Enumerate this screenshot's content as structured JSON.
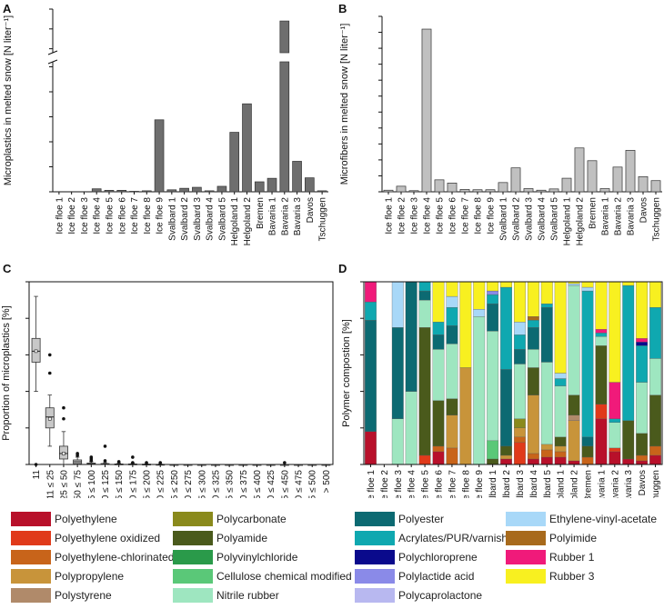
{
  "chart_data": [
    {
      "panel": "A",
      "type": "bar",
      "ylabel": "Microplastics in melted snow [N liter⁻¹]",
      "categories": [
        "Ice floe 1",
        "Ice floe 2",
        "Ice floe 3",
        "Ice floe 4",
        "Ice floe 5",
        "Ice floe 6",
        "Ice floe 7",
        "Ice floe 8",
        "Ice floe 9",
        "Svalbard 1",
        "Svalbard 2",
        "Svalbard 3",
        "Svalbard 4",
        "Svalbard 5",
        "Helgoland 1",
        "Helgoland 2",
        "Bremen",
        "Bavaria 1",
        "Bavaria 2",
        "Bavaria 3",
        "Davos",
        "Tschuggen"
      ],
      "values": [
        0,
        0,
        0,
        600,
        300,
        300,
        100,
        200,
        14400,
        400,
        700,
        900,
        200,
        1100,
        11900,
        17600,
        2000,
        2700,
        154000,
        6100,
        2800,
        200
      ],
      "yticks_lower": [
        "0",
        "5000",
        "10,000",
        "15,000",
        "20,000",
        "25,000"
      ],
      "yticks_upper": [
        "140,000",
        "150,000",
        "160,000"
      ],
      "axis_break": [
        26000,
        138000
      ],
      "bar_color": "#6e6e6e"
    },
    {
      "panel": "B",
      "type": "bar",
      "ylabel": "Microfibers in melted snow [N liter⁻¹]",
      "categories": [
        "Ice floe 1",
        "Ice floe 2",
        "Ice floe 3",
        "Ice floe 4",
        "Ice floe 5",
        "Ice floe 6",
        "Ice floe 7",
        "Ice floe 8",
        "Ice floe 9",
        "Svalbard 1",
        "Svalbard 2",
        "Svalbard 3",
        "Svalbard 4",
        "Svalbard 5",
        "Helgoland 1",
        "Helgoland 2",
        "Bremen",
        "Bavaria 1",
        "Bavaria 2",
        "Bavaria 3",
        "Davos",
        "Tschuggen"
      ],
      "values": [
        100,
        350,
        70,
        10200,
        750,
        550,
        150,
        130,
        130,
        580,
        1500,
        200,
        100,
        180,
        850,
        2750,
        1950,
        200,
        1550,
        2600,
        950,
        700
      ],
      "ylim": [
        0,
        11000
      ],
      "yticks": [
        "0",
        "1000",
        "2000",
        "3000",
        "4000",
        "5000",
        "6000",
        "7000",
        "8000",
        "9000",
        "10,000",
        "11,000"
      ],
      "bar_color": "#c0c0c0"
    },
    {
      "panel": "C",
      "type": "box",
      "ylabel": "Proportion of microplastics [%]",
      "categories": [
        "11",
        "> 11 ≤ 25",
        "> 25 ≤ 50",
        "> 50 ≤ 75",
        "> 75 ≤ 100",
        "> 100 ≤ 125",
        "> 125 ≤ 150",
        "> 150 ≤ 175",
        "> 175 ≤ 200",
        "> 200 ≤ 225",
        "> 225 ≤ 250",
        "> 250 ≤ 275",
        "> 275 ≤ 300",
        "> 300 ≤ 325",
        "> 325 ≤ 350",
        "> 350 ≤ 375",
        "> 375 ≤ 400",
        "> 400 ≤ 425",
        "> 425 ≤ 450",
        "> 450 ≤ 475",
        "> 475 ≤ 500",
        "> 500"
      ],
      "ylim": [
        0,
        100
      ],
      "yticks": [
        "0",
        "20",
        "40",
        "60",
        "80",
        "100"
      ],
      "boxes": [
        {
          "whislo": 40,
          "q1": 56,
          "med": 62,
          "q3": 69,
          "whishi": 92,
          "mean": 62,
          "fliers": [
            0
          ]
        },
        {
          "whislo": 10,
          "q1": 20,
          "med": 26,
          "q3": 31,
          "whishi": 38,
          "mean": 25,
          "fliers": [
            50,
            60
          ]
        },
        {
          "whislo": 0,
          "q1": 3,
          "med": 6,
          "q3": 10,
          "whishi": 18,
          "mean": 6,
          "fliers": [
            25,
            31
          ]
        },
        {
          "whislo": 0,
          "q1": 0.5,
          "med": 1.5,
          "q3": 2.5,
          "whishi": 4,
          "mean": 1.5,
          "fliers": [
            5,
            6
          ]
        },
        {
          "whislo": 0,
          "q1": 0,
          "med": 0.3,
          "q3": 0.8,
          "whishi": 1.5,
          "mean": 0.5,
          "fliers": [
            2,
            3,
            4
          ]
        },
        {
          "whislo": 0,
          "q1": 0,
          "med": 0.2,
          "q3": 0.5,
          "whishi": 1,
          "mean": 0.3,
          "fliers": [
            2,
            10
          ]
        },
        {
          "whislo": 0,
          "q1": 0,
          "med": 0.1,
          "q3": 0.3,
          "whishi": 0.7,
          "mean": 0.2,
          "fliers": [
            1.5
          ]
        },
        {
          "whislo": 0,
          "q1": 0,
          "med": 0.1,
          "q3": 0.3,
          "whishi": 0.6,
          "mean": 0.2,
          "fliers": [
            1,
            4
          ]
        },
        {
          "whislo": 0,
          "q1": 0,
          "med": 0,
          "q3": 0.2,
          "whishi": 0.4,
          "mean": 0.1,
          "fliers": [
            1
          ]
        },
        {
          "whislo": 0,
          "q1": 0,
          "med": 0,
          "q3": 0.1,
          "whishi": 0.3,
          "mean": 0.1,
          "fliers": [
            1
          ]
        },
        {
          "whislo": 0,
          "q1": 0,
          "med": 0,
          "q3": 0,
          "whishi": 0,
          "mean": 0,
          "fliers": []
        },
        {
          "whislo": 0,
          "q1": 0,
          "med": 0,
          "q3": 0,
          "whishi": 0,
          "mean": 0,
          "fliers": []
        },
        {
          "whislo": 0,
          "q1": 0,
          "med": 0,
          "q3": 0,
          "whishi": 0,
          "mean": 0,
          "fliers": []
        },
        {
          "whislo": 0,
          "q1": 0,
          "med": 0,
          "q3": 0,
          "whishi": 0,
          "mean": 0,
          "fliers": []
        },
        {
          "whislo": 0,
          "q1": 0,
          "med": 0,
          "q3": 0,
          "whishi": 0,
          "mean": 0,
          "fliers": []
        },
        {
          "whislo": 0,
          "q1": 0,
          "med": 0,
          "q3": 0,
          "whishi": 0,
          "mean": 0,
          "fliers": []
        },
        {
          "whislo": 0,
          "q1": 0,
          "med": 0,
          "q3": 0,
          "whishi": 0,
          "mean": 0,
          "fliers": []
        },
        {
          "whislo": 0,
          "q1": 0,
          "med": 0,
          "q3": 0,
          "whishi": 0,
          "mean": 0,
          "fliers": []
        },
        {
          "whislo": 0,
          "q1": 0,
          "med": 0,
          "q3": 0,
          "whishi": 0,
          "mean": 0,
          "fliers": [
            1
          ]
        },
        {
          "whislo": 0,
          "q1": 0,
          "med": 0,
          "q3": 0,
          "whishi": 0,
          "mean": 0,
          "fliers": []
        },
        {
          "whislo": 0,
          "q1": 0,
          "med": 0,
          "q3": 0,
          "whishi": 0,
          "mean": 0,
          "fliers": []
        },
        {
          "whislo": 0,
          "q1": 0,
          "med": 0,
          "q3": 0,
          "whishi": 0,
          "mean": 0,
          "fliers": []
        }
      ],
      "box_color": "#c8c8c8"
    },
    {
      "panel": "D",
      "type": "stacked_bar",
      "ylabel": "Polymer compostion [%]",
      "ylim": [
        0,
        100
      ],
      "yticks": [
        "0",
        "20",
        "40",
        "60",
        "80",
        "100"
      ],
      "categories": [
        "Ice floe 1",
        "Ice floe 2",
        "Ice floe 3",
        "Ice floe 4",
        "Ice floe 5",
        "Ice floe 6",
        "Ice floe 7",
        "Ice floe 8",
        "Ice floe 9",
        "Svalbard 1",
        "Svalbard 2",
        "Svalbard 3",
        "Svalbard 4",
        "Svalbard 5",
        "Helgoland 1",
        "Helgoland 2",
        "Bremen",
        "Bavaria 1",
        "Bavaria 2",
        "Bavaria 3",
        "Davos",
        "Tschuggen"
      ],
      "series": [
        {
          "name": "Polyethylene",
          "color": "#b8102a",
          "values": [
            18,
            0,
            0,
            0,
            0,
            7,
            0,
            0,
            0,
            0,
            3,
            0,
            3,
            4,
            4,
            2,
            0,
            25,
            7,
            3,
            2,
            5
          ]
        },
        {
          "name": "Polyethylene oxidized",
          "color": "#e03a1a",
          "values": [
            0,
            0,
            0,
            0,
            5,
            0,
            0,
            0,
            0,
            0,
            0,
            12,
            0,
            0,
            0,
            0,
            0,
            8,
            2,
            0,
            0,
            0
          ]
        },
        {
          "name": "Polyethylene-chlorinated",
          "color": "#c8641a",
          "values": [
            0,
            0,
            0,
            0,
            0,
            3,
            9,
            0,
            0,
            0,
            0,
            3,
            3,
            4,
            3,
            0,
            4,
            0,
            0,
            0,
            3,
            5
          ]
        },
        {
          "name": "Polypropylene",
          "color": "#c8943a",
          "values": [
            0,
            0,
            0,
            0,
            0,
            0,
            18,
            53,
            0,
            0,
            2,
            5,
            32,
            3,
            3,
            22,
            0,
            0,
            0,
            0,
            0,
            0
          ]
        },
        {
          "name": "Polystyrene",
          "color": "#b08a6a",
          "values": [
            0,
            0,
            0,
            0,
            0,
            0,
            0,
            0,
            0,
            0,
            0,
            0,
            0,
            0,
            0,
            3,
            0,
            0,
            0,
            0,
            0,
            0
          ]
        },
        {
          "name": "Polycarbonate",
          "color": "#8a8a1c",
          "values": [
            0,
            0,
            0,
            0,
            0,
            0,
            0,
            0,
            0,
            0,
            0,
            5,
            0,
            0,
            0,
            0,
            0,
            0,
            0,
            0,
            0,
            0
          ]
        },
        {
          "name": "Polyamide",
          "color": "#4a5a1c",
          "values": [
            0,
            0,
            0,
            0,
            70,
            25,
            9,
            0,
            0,
            3,
            5,
            0,
            15,
            0,
            5,
            11,
            6,
            32,
            0,
            21,
            12,
            28
          ]
        },
        {
          "name": "Polyvinylchloride",
          "color": "#2a9a4a",
          "values": [
            0,
            0,
            0,
            0,
            0,
            0,
            0,
            0,
            0,
            0,
            0,
            0,
            0,
            0,
            0,
            0,
            0,
            0,
            0,
            0,
            0,
            0
          ]
        },
        {
          "name": "Cellulose chemical modified",
          "color": "#5ac878",
          "values": [
            0,
            0,
            0,
            0,
            0,
            0,
            0,
            0,
            0,
            10,
            0,
            0,
            0,
            0,
            0,
            0,
            0,
            0,
            0,
            0,
            0,
            0
          ]
        },
        {
          "name": "Nitrile rubber",
          "color": "#9ee6c0",
          "values": [
            0,
            0,
            25,
            40,
            15,
            28,
            30,
            0,
            81,
            60,
            0,
            30,
            10,
            45,
            28,
            60,
            0,
            5,
            14,
            0,
            28,
            20
          ]
        },
        {
          "name": "Polyester",
          "color": "#0c6a72",
          "values": [
            61,
            0,
            50,
            60,
            5,
            8,
            10,
            0,
            0,
            15,
            42,
            8,
            12,
            30,
            0,
            0,
            5,
            0,
            0,
            0,
            0,
            0
          ]
        },
        {
          "name": "Acrylates/PUR/varnish",
          "color": "#0fa8b0",
          "values": [
            10,
            0,
            0,
            0,
            5,
            7,
            10,
            0,
            0,
            5,
            45,
            8,
            4,
            2,
            4,
            0,
            80,
            2,
            2,
            74,
            20,
            28
          ]
        },
        {
          "name": "Polychloroprene",
          "color": "#0a0a8c",
          "values": [
            0,
            0,
            0,
            0,
            0,
            0,
            0,
            0,
            0,
            0,
            0,
            0,
            0,
            0,
            0,
            0,
            0,
            0,
            0,
            0,
            2,
            0
          ]
        },
        {
          "name": "Polylactide acid",
          "color": "#8a8ae8",
          "values": [
            0,
            0,
            0,
            0,
            0,
            0,
            0,
            0,
            0,
            2,
            0,
            0,
            0,
            0,
            0,
            0,
            0,
            0,
            0,
            0,
            0,
            0
          ]
        },
        {
          "name": "Polycaprolactone",
          "color": "#b8b8f0",
          "values": [
            0,
            0,
            0,
            0,
            0,
            0,
            0,
            0,
            0,
            0,
            0,
            0,
            0,
            0,
            0,
            0,
            0,
            0,
            0,
            0,
            0,
            0
          ]
        },
        {
          "name": "Ethylene-vinyl-acetate",
          "color": "#a8d8f8",
          "values": [
            0,
            0,
            25,
            0,
            0,
            0,
            6,
            0,
            4,
            0,
            0,
            7,
            0,
            0,
            3,
            1,
            2,
            0,
            0,
            0,
            0,
            0
          ]
        },
        {
          "name": "Polyimide",
          "color": "#a86a1c",
          "values": [
            0,
            0,
            0,
            0,
            0,
            0,
            0,
            0,
            0,
            0,
            0,
            0,
            2,
            0,
            0,
            0,
            0,
            0,
            0,
            0,
            0,
            0
          ]
        },
        {
          "name": "Rubber 1",
          "color": "#f01a7a",
          "values": [
            11,
            0,
            0,
            0,
            5,
            0,
            0,
            0,
            0,
            0,
            0,
            0,
            0,
            0,
            0,
            0,
            0,
            2,
            20,
            0,
            2,
            0
          ]
        },
        {
          "name": "Rubber 3",
          "color": "#f8f020",
          "values": [
            0,
            0,
            0,
            0,
            0,
            22,
            8,
            47,
            15,
            5,
            3,
            22,
            19,
            12,
            50,
            1,
            3,
            26,
            55,
            2,
            31,
            14
          ]
        }
      ]
    }
  ],
  "panels": {
    "a": "A",
    "b": "B",
    "c": "C",
    "d": "D"
  },
  "legend": [
    {
      "label": "Polyethylene",
      "color": "#b8102a"
    },
    {
      "label": "Polyethylene oxidized",
      "color": "#e03a1a"
    },
    {
      "label": "Polyethylene-chlorinated",
      "color": "#c8641a"
    },
    {
      "label": "Polypropylene",
      "color": "#c8943a"
    },
    {
      "label": "Polystyrene",
      "color": "#b08a6a"
    },
    {
      "label": "Polycarbonate",
      "color": "#8a8a1c"
    },
    {
      "label": "Polyamide",
      "color": "#4a5a1c"
    },
    {
      "label": "Polyvinylchloride",
      "color": "#2a9a4a"
    },
    {
      "label": "Cellulose chemical modified",
      "color": "#5ac878"
    },
    {
      "label": "Nitrile rubber",
      "color": "#9ee6c0"
    },
    {
      "label": "Polyester",
      "color": "#0c6a72"
    },
    {
      "label": "Acrylates/PUR/varnish",
      "color": "#0fa8b0"
    },
    {
      "label": "Polychloroprene",
      "color": "#0a0a8c"
    },
    {
      "label": "Polylactide acid",
      "color": "#8a8ae8"
    },
    {
      "label": "Polycaprolactone",
      "color": "#b8b8f0"
    },
    {
      "label": "Ethylene-vinyl-acetate",
      "color": "#a8d8f8"
    },
    {
      "label": "Polyimide",
      "color": "#a86a1c"
    },
    {
      "label": "Rubber 1",
      "color": "#f01a7a"
    },
    {
      "label": "Rubber 3",
      "color": "#f8f020"
    }
  ]
}
